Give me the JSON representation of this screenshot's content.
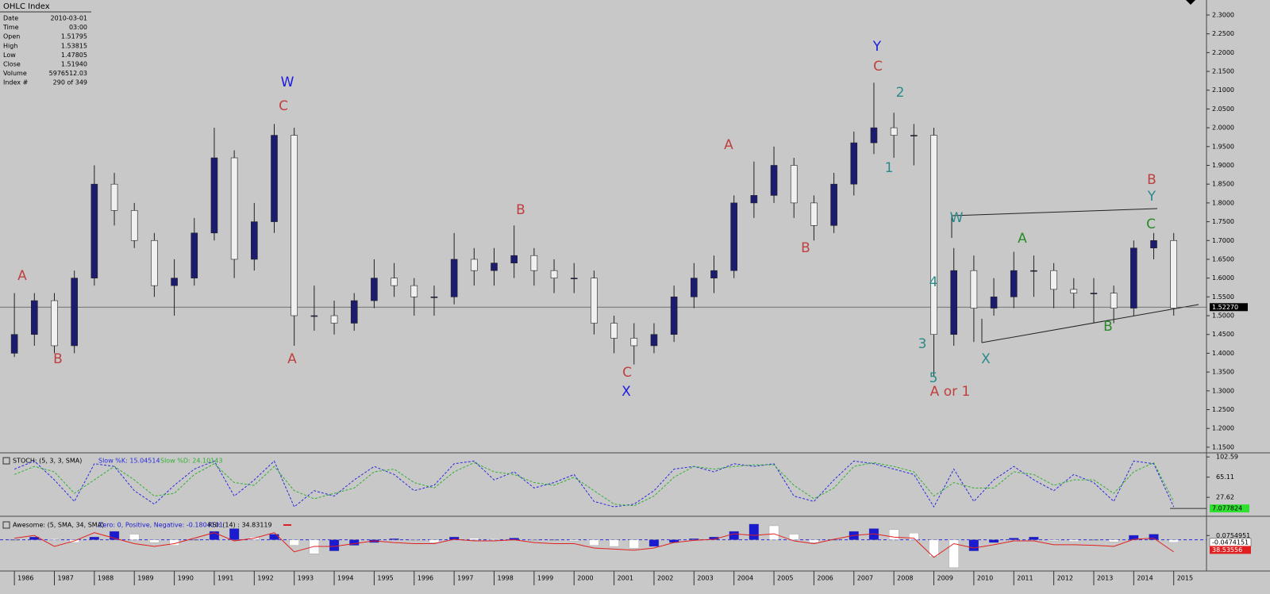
{
  "info_panel": {
    "title": "OHLC Index",
    "rows": [
      [
        "Date",
        "2010-03-01"
      ],
      [
        "Time",
        "03:00"
      ],
      [
        "Open",
        "1.51795"
      ],
      [
        "High",
        "1.53815"
      ],
      [
        "Low",
        "1.47805"
      ],
      [
        "Close",
        "1.51940"
      ],
      [
        "Volume",
        "5976512.03"
      ],
      [
        "Index #",
        "290 of 349"
      ]
    ]
  },
  "chart_data": [
    {
      "type": "ohlc",
      "x": [
        1986.0,
        1986.5,
        1987.0,
        1987.5,
        1988.0,
        1988.5,
        1989.0,
        1989.5,
        1990.0,
        1990.5,
        1991.0,
        1991.5,
        1992.0,
        1992.5,
        1993.0,
        1993.5,
        1994.0,
        1994.5,
        1995.0,
        1995.5,
        1996.0,
        1996.5,
        1997.0,
        1997.5,
        1998.0,
        1998.5,
        1999.0,
        1999.5,
        2000.0,
        2000.5,
        2001.0,
        2001.5,
        2002.0,
        2002.5,
        2003.0,
        2003.5,
        2004.0,
        2004.5,
        2005.0,
        2005.5,
        2006.0,
        2006.5,
        2007.0,
        2007.5,
        2008.0,
        2008.5,
        2009.0,
        2009.5,
        2010.0,
        2010.5,
        2011.0,
        2011.5,
        2012.0,
        2012.5,
        2013.0,
        2013.5,
        2014.0,
        2014.5,
        2015.0
      ],
      "open": [
        1.4,
        1.45,
        1.54,
        1.42,
        1.6,
        1.85,
        1.78,
        1.7,
        1.58,
        1.6,
        1.72,
        1.92,
        1.65,
        1.75,
        1.98,
        1.5,
        1.5,
        1.48,
        1.54,
        1.6,
        1.58,
        1.55,
        1.55,
        1.65,
        1.62,
        1.64,
        1.66,
        1.62,
        1.6,
        1.6,
        1.48,
        1.44,
        1.42,
        1.45,
        1.55,
        1.6,
        1.62,
        1.8,
        1.82,
        1.9,
        1.8,
        1.74,
        1.85,
        1.96,
        2.0,
        1.98,
        1.98,
        1.45,
        1.62,
        1.52,
        1.55,
        1.62,
        1.62,
        1.57,
        1.56,
        1.56,
        1.52,
        1.68,
        1.7
      ],
      "high": [
        1.56,
        1.56,
        1.56,
        1.62,
        1.9,
        1.88,
        1.8,
        1.72,
        1.65,
        1.76,
        2.0,
        1.94,
        1.8,
        2.01,
        2.0,
        1.58,
        1.54,
        1.56,
        1.65,
        1.64,
        1.6,
        1.58,
        1.72,
        1.68,
        1.68,
        1.74,
        1.68,
        1.65,
        1.64,
        1.62,
        1.5,
        1.48,
        1.48,
        1.58,
        1.64,
        1.66,
        1.82,
        1.91,
        1.95,
        1.92,
        1.82,
        1.88,
        1.99,
        2.12,
        2.04,
        2.01,
        2.0,
        1.68,
        1.66,
        1.6,
        1.67,
        1.66,
        1.64,
        1.6,
        1.6,
        1.58,
        1.7,
        1.72,
        1.72
      ],
      "low": [
        1.39,
        1.42,
        1.4,
        1.4,
        1.58,
        1.74,
        1.68,
        1.55,
        1.5,
        1.58,
        1.7,
        1.6,
        1.62,
        1.72,
        1.42,
        1.46,
        1.45,
        1.46,
        1.52,
        1.55,
        1.5,
        1.5,
        1.53,
        1.58,
        1.58,
        1.6,
        1.58,
        1.56,
        1.56,
        1.45,
        1.4,
        1.37,
        1.4,
        1.43,
        1.52,
        1.56,
        1.6,
        1.76,
        1.8,
        1.76,
        1.7,
        1.72,
        1.82,
        1.93,
        1.92,
        1.9,
        1.34,
        1.42,
        1.43,
        1.5,
        1.52,
        1.55,
        1.52,
        1.52,
        1.48,
        1.48,
        1.5,
        1.65,
        1.5
      ],
      "close": [
        1.45,
        1.54,
        1.42,
        1.6,
        1.85,
        1.78,
        1.7,
        1.58,
        1.6,
        1.72,
        1.92,
        1.65,
        1.75,
        1.98,
        1.5,
        1.5,
        1.48,
        1.54,
        1.6,
        1.58,
        1.55,
        1.55,
        1.65,
        1.62,
        1.64,
        1.66,
        1.62,
        1.6,
        1.6,
        1.48,
        1.44,
        1.42,
        1.45,
        1.55,
        1.6,
        1.62,
        1.8,
        1.82,
        1.9,
        1.8,
        1.74,
        1.85,
        1.96,
        2.0,
        1.98,
        1.98,
        1.45,
        1.62,
        1.52,
        1.55,
        1.62,
        1.62,
        1.57,
        1.56,
        1.56,
        1.52,
        1.68,
        1.7,
        1.52
      ],
      "up_color": "#1c1c6e",
      "down_color": "#f0f0f0",
      "xlim": [
        1985.64,
        2015.82
      ],
      "xticks": [
        1986,
        1987,
        1988,
        1989,
        1990,
        1991,
        1992,
        1993,
        1994,
        1995,
        1996,
        1997,
        1998,
        1999,
        2000,
        2001,
        2002,
        2003,
        2004,
        2005,
        2006,
        2007,
        2008,
        2009,
        2010,
        2011,
        2012,
        2013,
        2014,
        2015
      ],
      "ylim": [
        1.135,
        2.34
      ],
      "yticks": [
        {
          "value": 1.15,
          "label": "1.1500"
        },
        {
          "value": 1.2,
          "label": "1.2000"
        },
        {
          "value": 1.25,
          "label": "1.2500"
        },
        {
          "value": 1.3,
          "label": "1.3000"
        },
        {
          "value": 1.35,
          "label": "1.3500"
        },
        {
          "value": 1.4,
          "label": "1.4000"
        },
        {
          "value": 1.45,
          "label": "1.4500"
        },
        {
          "value": 1.5,
          "label": "1.5000"
        },
        {
          "value": 1.55,
          "label": "1.5500"
        },
        {
          "value": 1.6,
          "label": "1.6000"
        },
        {
          "value": 1.65,
          "label": "1.6500"
        },
        {
          "value": 1.7,
          "label": "1.7000"
        },
        {
          "value": 1.75,
          "label": "1.7500"
        },
        {
          "value": 1.8,
          "label": "1.8000"
        },
        {
          "value": 1.85,
          "label": "1.8500"
        },
        {
          "value": 1.9,
          "label": "1.9000"
        },
        {
          "value": 1.95,
          "label": "1.9500"
        },
        {
          "value": 2.0,
          "label": "2.0000"
        },
        {
          "value": 2.05,
          "label": "2.0500"
        },
        {
          "value": 2.1,
          "label": "2.1000"
        },
        {
          "value": 2.15,
          "label": "2.1500"
        },
        {
          "value": 2.2,
          "label": "2.2000"
        },
        {
          "value": 2.25,
          "label": "2.2500"
        },
        {
          "value": 2.3,
          "label": "2.3000"
        }
      ],
      "price_line": {
        "value": 1.5227,
        "label": "1.52270"
      },
      "annotations": [
        {
          "text": "A",
          "color": "#c04040"
        },
        {
          "text": "B",
          "color": "#c04040"
        },
        {
          "text": "W",
          "color": "#1a1ae0"
        },
        {
          "text": "C",
          "color": "#c04040"
        },
        {
          "text": "A",
          "color": "#c04040"
        },
        {
          "text": "B",
          "color": "#c04040"
        },
        {
          "text": "C",
          "color": "#c04040"
        },
        {
          "text": "X",
          "color": "#1a1ae0"
        },
        {
          "text": "A",
          "color": "#c04040"
        },
        {
          "text": "B",
          "color": "#c04040"
        },
        {
          "text": "Y",
          "color": "#1a1ae0"
        },
        {
          "text": "C",
          "color": "#c04040"
        },
        {
          "text": "2",
          "color": "#2a8a8a"
        },
        {
          "text": "1",
          "color": "#2a8a8a"
        },
        {
          "text": "W",
          "color": "#2a8a8a"
        },
        {
          "text": "4",
          "color": "#2a8a8a"
        },
        {
          "text": "3",
          "color": "#2a8a8a"
        },
        {
          "text": "5",
          "color": "#2a8a8a"
        },
        {
          "text": "A or 1",
          "color": "#c04040"
        },
        {
          "text": "X",
          "color": "#2a8a8a"
        },
        {
          "text": "A",
          "color": "#2a8a2a"
        },
        {
          "text": "B",
          "color": "#2a8a2a"
        },
        {
          "text": "B",
          "color": "#c04040"
        },
        {
          "text": "Y",
          "color": "#2a8a8a"
        },
        {
          "text": "C",
          "color": "#2a8a2a"
        }
      ]
    },
    {
      "type": "line",
      "title": "STOCH: (5, 3, 3, SMA)",
      "x": [
        1986.0,
        1986.5,
        1987.0,
        1987.5,
        1988.0,
        1988.5,
        1989.0,
        1989.5,
        1990.0,
        1990.5,
        1991.0,
        1991.5,
        1992.0,
        1992.5,
        1993.0,
        1993.5,
        1994.0,
        1994.5,
        1995.0,
        1995.5,
        1996.0,
        1996.5,
        1997.0,
        1997.5,
        1998.0,
        1998.5,
        1999.0,
        1999.5,
        2000.0,
        2000.5,
        2001.0,
        2001.5,
        2002.0,
        2002.5,
        2003.0,
        2003.5,
        2004.0,
        2004.5,
        2005.0,
        2005.5,
        2006.0,
        2006.5,
        2007.0,
        2007.5,
        2008.0,
        2008.5,
        2009.0,
        2009.5,
        2010.0,
        2010.5,
        2011.0,
        2011.5,
        2012.0,
        2012.5,
        2013.0,
        2013.5,
        2014.0,
        2014.5,
        2015.0
      ],
      "series": [
        {
          "name": "Slow %K: 15.04514",
          "color": "#2a2ae0",
          "values": [
            80,
            95,
            60,
            20,
            90,
            85,
            40,
            15,
            50,
            80,
            95,
            30,
            60,
            95,
            10,
            40,
            30,
            60,
            85,
            70,
            40,
            50,
            90,
            95,
            60,
            75,
            45,
            55,
            70,
            20,
            10,
            15,
            40,
            80,
            85,
            75,
            90,
            85,
            90,
            30,
            20,
            60,
            95,
            90,
            80,
            70,
            10,
            80,
            20,
            60,
            85,
            60,
            40,
            70,
            55,
            20,
            95,
            90,
            10
          ]
        },
        {
          "name": "Slow %D: 24.10143",
          "color": "#30b030",
          "values": [
            70,
            85,
            75,
            35,
            60,
            85,
            60,
            30,
            35,
            70,
            90,
            55,
            50,
            85,
            40,
            25,
            35,
            45,
            75,
            80,
            55,
            45,
            75,
            92,
            75,
            70,
            55,
            50,
            65,
            40,
            15,
            12,
            30,
            65,
            85,
            80,
            85,
            88,
            88,
            50,
            25,
            45,
            85,
            92,
            85,
            75,
            30,
            55,
            45,
            45,
            75,
            70,
            50,
            60,
            60,
            35,
            75,
            92,
            20
          ]
        }
      ],
      "xlim": [
        1985.64,
        2015.82
      ],
      "ylim": [
        -7.5,
        110.2
      ],
      "yticks": [
        27.62,
        65.11,
        102.59
      ],
      "current_value": 7.077824
    },
    {
      "type": "awesome",
      "title": "Awesome: (5, SMA, 34, SMA)",
      "x": [
        1986.0,
        1986.5,
        1987.0,
        1987.5,
        1988.0,
        1988.5,
        1989.0,
        1989.5,
        1990.0,
        1990.5,
        1991.0,
        1991.5,
        1992.0,
        1992.5,
        1993.0,
        1993.5,
        1994.0,
        1994.5,
        1995.0,
        1995.5,
        1996.0,
        1996.5,
        1997.0,
        1997.5,
        1998.0,
        1998.5,
        1999.0,
        1999.5,
        2000.0,
        2000.5,
        2001.0,
        2001.5,
        2002.0,
        2002.5,
        2003.0,
        2003.5,
        2004.0,
        2004.5,
        2005.0,
        2005.5,
        2006.0,
        2006.5,
        2007.0,
        2007.5,
        2008.0,
        2008.5,
        2009.0,
        2009.5,
        2010.0,
        2010.5,
        2011.0,
        2011.5,
        2012.0,
        2012.5,
        2013.0,
        2013.5,
        2014.0,
        2014.5,
        2015.0
      ],
      "series": [
        {
          "name": "Zero: 0, Positive, Negative: -0.1804101",
          "color": "#1a1ad0",
          "down_color": "#ffffff",
          "values": [
            0,
            0.05,
            0.02,
            -0.05,
            0.05,
            0.15,
            0.1,
            -0.05,
            -0.1,
            0,
            0.15,
            0.2,
            0.05,
            0.1,
            -0.1,
            -0.25,
            -0.2,
            -0.1,
            -0.05,
            0.02,
            0.0,
            -0.05,
            0.05,
            0.03,
            0.02,
            0.03,
            0.0,
            0.0,
            -0.02,
            -0.1,
            -0.12,
            -0.15,
            -0.12,
            -0.05,
            0.02,
            0.05,
            0.15,
            0.28,
            0.25,
            0.1,
            -0.05,
            0.0,
            0.15,
            0.2,
            0.18,
            0.12,
            -0.3,
            -0.5,
            -0.2,
            -0.05,
            0.03,
            0.05,
            -0.02,
            -0.03,
            0.0,
            -0.04,
            0.08,
            0.1,
            -0.047
          ]
        },
        {
          "name": "RSI: (14) : 34.83119",
          "color": "#e02020",
          "axis": "y2",
          "values": [
            60,
            65,
            45,
            55,
            70,
            60,
            50,
            45,
            50,
            60,
            70,
            55,
            60,
            70,
            35,
            45,
            45,
            50,
            55,
            52,
            50,
            50,
            58,
            55,
            55,
            57,
            52,
            50,
            50,
            42,
            40,
            38,
            42,
            52,
            56,
            58,
            68,
            65,
            68,
            55,
            50,
            58,
            65,
            68,
            62,
            60,
            25,
            50,
            42,
            48,
            55,
            55,
            48,
            48,
            47,
            45,
            58,
            60,
            35
          ]
        }
      ],
      "xlim": [
        1985.64,
        2015.82
      ],
      "ylim": [
        -0.56,
        0.42
      ],
      "yticks": [
        0.0754951
      ],
      "y2lim": [
        0,
        100
      ],
      "current_value": -0.0474151,
      "y2_current_value": 38.53556
    }
  ]
}
